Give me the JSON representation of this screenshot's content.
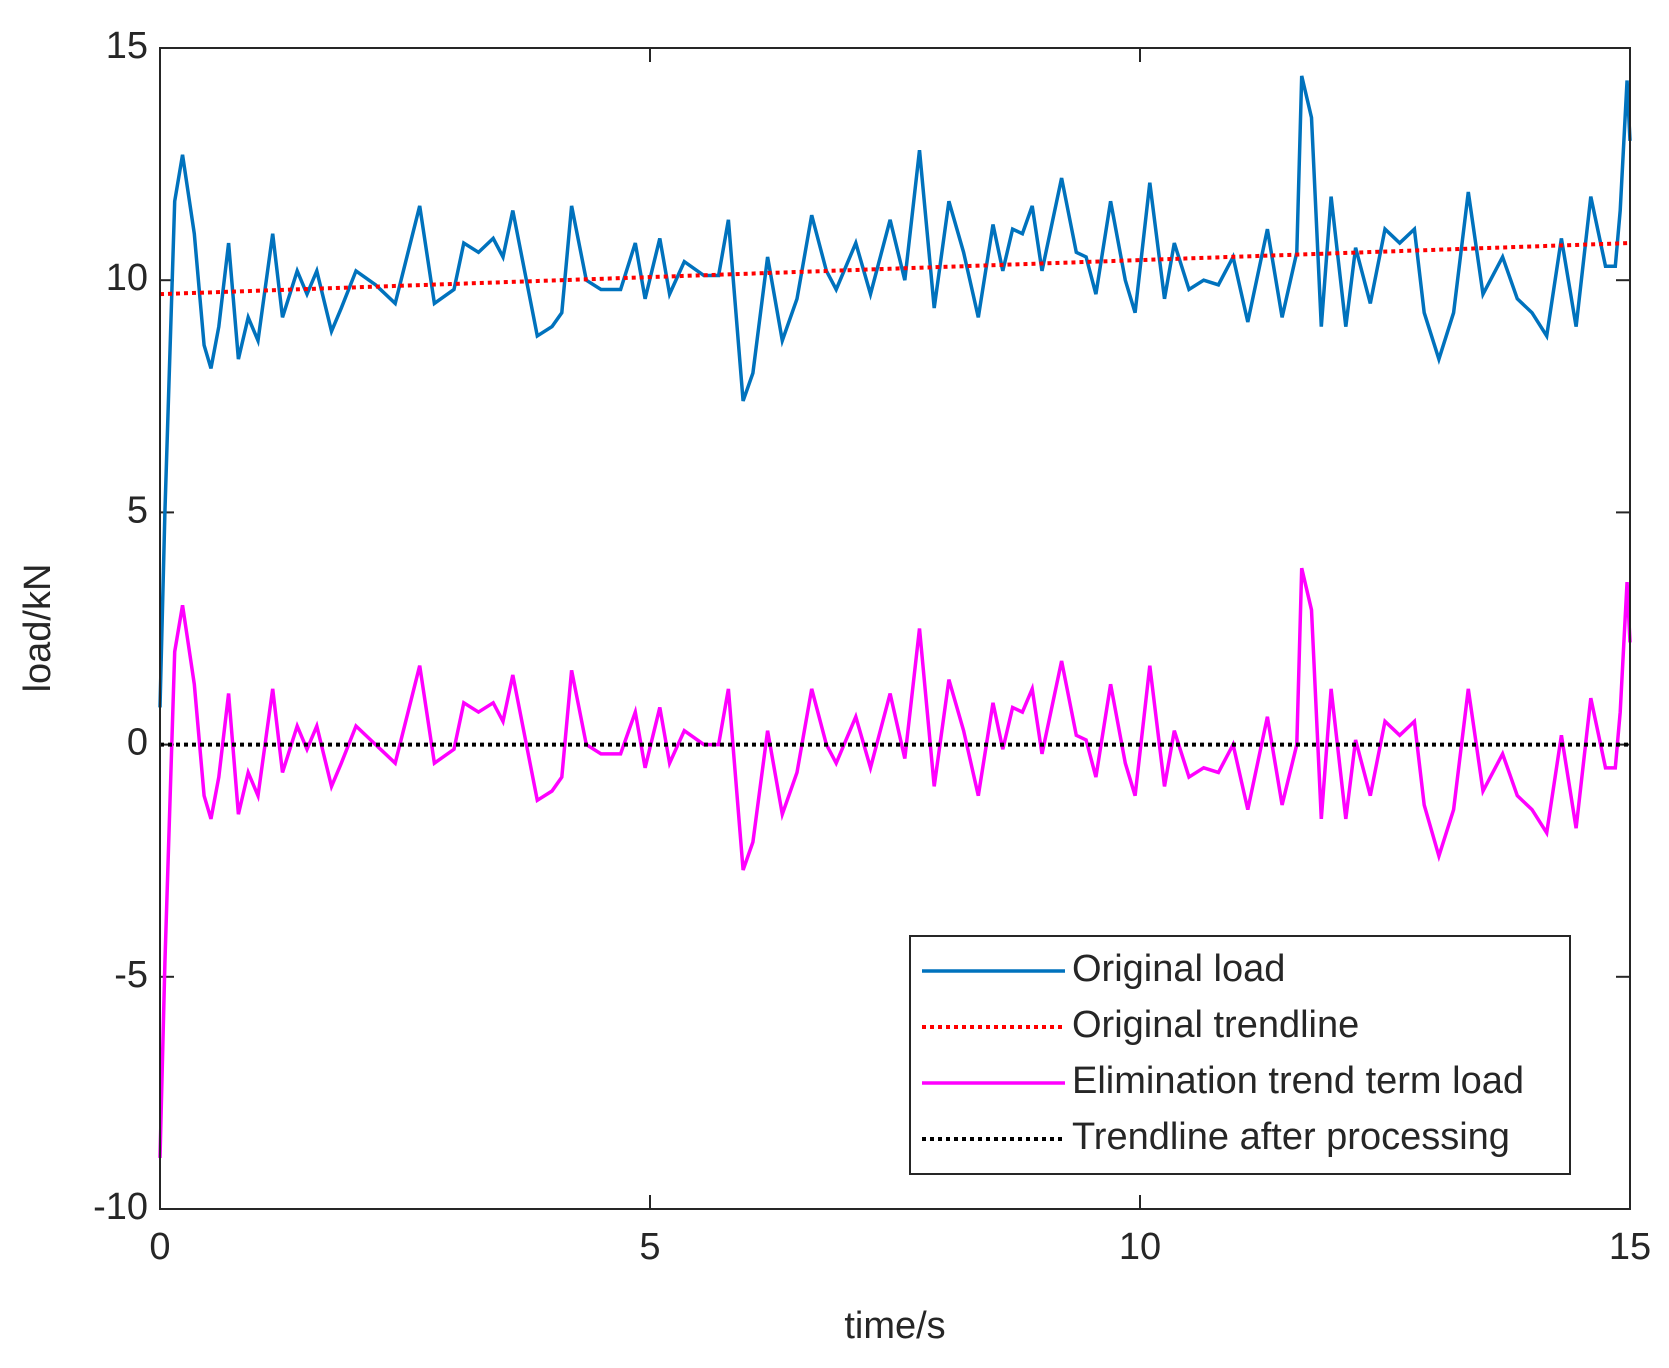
{
  "chart_data": {
    "type": "line",
    "x_label": "time/s",
    "y_label": "load/kN",
    "xlim": [
      0,
      15
    ],
    "xticks": [
      0,
      5,
      10,
      15
    ],
    "ylim": [
      -10,
      15
    ],
    "yticks": [
      -10,
      -5,
      0,
      5,
      10,
      15
    ],
    "legend": "lower right",
    "series": [
      {
        "name": "Original load",
        "color": "#0072bd",
        "style": "solid",
        "x": [
          0,
          0.05,
          0.15,
          0.23,
          0.35,
          0.45,
          0.52,
          0.6,
          0.7,
          0.8,
          0.9,
          1.0,
          1.15,
          1.25,
          1.4,
          1.5,
          1.6,
          1.75,
          1.85,
          2.0,
          2.2,
          2.4,
          2.65,
          2.8,
          3.0,
          3.1,
          3.25,
          3.4,
          3.5,
          3.6,
          3.85,
          4.0,
          4.1,
          4.2,
          4.35,
          4.5,
          4.7,
          4.85,
          4.95,
          5.1,
          5.2,
          5.35,
          5.55,
          5.7,
          5.8,
          5.95,
          6.05,
          6.2,
          6.35,
          6.5,
          6.65,
          6.8,
          6.9,
          7.1,
          7.25,
          7.45,
          7.6,
          7.75,
          7.9,
          8.05,
          8.2,
          8.35,
          8.5,
          8.6,
          8.7,
          8.8,
          8.9,
          9.0,
          9.2,
          9.35,
          9.45,
          9.55,
          9.7,
          9.85,
          9.95,
          10.1,
          10.25,
          10.35,
          10.5,
          10.65,
          10.8,
          10.95,
          11.1,
          11.3,
          11.45,
          11.6,
          11.65,
          11.75,
          11.85,
          11.95,
          12.1,
          12.2,
          12.35,
          12.5,
          12.65,
          12.8,
          12.9,
          13.05,
          13.2,
          13.35,
          13.5,
          13.7,
          13.85,
          14.0,
          14.15,
          14.3,
          14.45,
          14.6,
          14.75,
          14.85,
          14.9,
          14.97,
          15
        ],
        "values": [
          0.8,
          5,
          11.7,
          12.7,
          11,
          8.6,
          8.1,
          9,
          10.8,
          8.3,
          9.2,
          8.7,
          11,
          9.2,
          10.2,
          9.7,
          10.2,
          8.9,
          9.4,
          10.2,
          9.9,
          9.5,
          11.6,
          9.5,
          9.8,
          10.8,
          10.6,
          10.9,
          10.5,
          11.5,
          8.8,
          9.0,
          9.3,
          11.6,
          10.0,
          9.8,
          9.8,
          10.8,
          9.6,
          10.9,
          9.7,
          10.4,
          10.1,
          10.1,
          11.3,
          7.4,
          8.0,
          10.5,
          8.7,
          9.6,
          11.4,
          10.2,
          9.8,
          10.8,
          9.7,
          11.3,
          10.0,
          12.8,
          9.4,
          11.7,
          10.6,
          9.2,
          11.2,
          10.2,
          11.1,
          11.0,
          11.6,
          10.2,
          12.2,
          10.6,
          10.5,
          9.7,
          11.7,
          10.0,
          9.3,
          12.1,
          9.6,
          10.8,
          9.8,
          10.0,
          9.9,
          10.5,
          9.1,
          11.1,
          9.2,
          10.6,
          14.4,
          13.5,
          9.0,
          11.8,
          9.0,
          10.7,
          9.5,
          11.1,
          10.8,
          11.1,
          9.3,
          8.3,
          9.3,
          11.9,
          9.7,
          10.5,
          9.6,
          9.3,
          8.8,
          10.9,
          9.0,
          11.8,
          10.3,
          10.3,
          11.5,
          14.3,
          13.0
        ]
      },
      {
        "name": "Original trendline",
        "color": "#ff0000",
        "style": "dotted",
        "x": [
          0,
          15
        ],
        "values": [
          9.7,
          10.8
        ]
      },
      {
        "name": "Elimination trend term load",
        "color": "#ff00ff",
        "style": "solid",
        "x": [
          0,
          0.05,
          0.15,
          0.23,
          0.35,
          0.45,
          0.52,
          0.6,
          0.7,
          0.8,
          0.9,
          1.0,
          1.15,
          1.25,
          1.4,
          1.5,
          1.6,
          1.75,
          1.85,
          2.0,
          2.2,
          2.4,
          2.65,
          2.8,
          3.0,
          3.1,
          3.25,
          3.4,
          3.5,
          3.6,
          3.85,
          4.0,
          4.1,
          4.2,
          4.35,
          4.5,
          4.7,
          4.85,
          4.95,
          5.1,
          5.2,
          5.35,
          5.55,
          5.7,
          5.8,
          5.95,
          6.05,
          6.2,
          6.35,
          6.5,
          6.65,
          6.8,
          6.9,
          7.1,
          7.25,
          7.45,
          7.6,
          7.75,
          7.9,
          8.05,
          8.2,
          8.35,
          8.5,
          8.6,
          8.7,
          8.8,
          8.9,
          9.0,
          9.2,
          9.35,
          9.45,
          9.55,
          9.7,
          9.85,
          9.95,
          10.1,
          10.25,
          10.35,
          10.5,
          10.65,
          10.8,
          10.95,
          11.1,
          11.3,
          11.45,
          11.6,
          11.65,
          11.75,
          11.85,
          11.95,
          12.1,
          12.2,
          12.35,
          12.5,
          12.65,
          12.8,
          12.9,
          13.05,
          13.2,
          13.35,
          13.5,
          13.7,
          13.85,
          14.0,
          14.15,
          14.3,
          14.45,
          14.6,
          14.75,
          14.85,
          14.9,
          14.97,
          15
        ],
        "values": [
          -8.9,
          -4.7,
          2.0,
          3.0,
          1.3,
          -1.1,
          -1.6,
          -0.7,
          1.1,
          -1.5,
          -0.6,
          -1.1,
          1.2,
          -0.6,
          0.4,
          -0.1,
          0.4,
          -0.9,
          -0.4,
          0.4,
          0.0,
          -0.4,
          1.7,
          -0.4,
          -0.1,
          0.9,
          0.7,
          0.9,
          0.5,
          1.5,
          -1.2,
          -1.0,
          -0.7,
          1.6,
          0.0,
          -0.2,
          -0.2,
          0.7,
          -0.5,
          0.8,
          -0.4,
          0.3,
          0.0,
          0.0,
          1.2,
          -2.7,
          -2.1,
          0.3,
          -1.5,
          -0.6,
          1.2,
          0.0,
          -0.4,
          0.6,
          -0.5,
          1.1,
          -0.3,
          2.5,
          -0.9,
          1.4,
          0.3,
          -1.1,
          0.9,
          -0.1,
          0.8,
          0.7,
          1.2,
          -0.2,
          1.8,
          0.2,
          0.1,
          -0.7,
          1.3,
          -0.4,
          -1.1,
          1.7,
          -0.9,
          0.3,
          -0.7,
          -0.5,
          -0.6,
          0.0,
          -1.4,
          0.6,
          -1.3,
          0.0,
          3.8,
          2.9,
          -1.6,
          1.2,
          -1.6,
          0.1,
          -1.1,
          0.5,
          0.2,
          0.5,
          -1.3,
          -2.4,
          -1.4,
          1.2,
          -1.0,
          -0.2,
          -1.1,
          -1.4,
          -1.9,
          0.2,
          -1.8,
          1.0,
          -0.5,
          -0.5,
          0.7,
          3.5,
          2.2
        ]
      },
      {
        "name": "Trendline after processing",
        "color": "#000000",
        "style": "dotted",
        "x": [
          0,
          15
        ],
        "values": [
          0,
          0
        ]
      }
    ]
  }
}
